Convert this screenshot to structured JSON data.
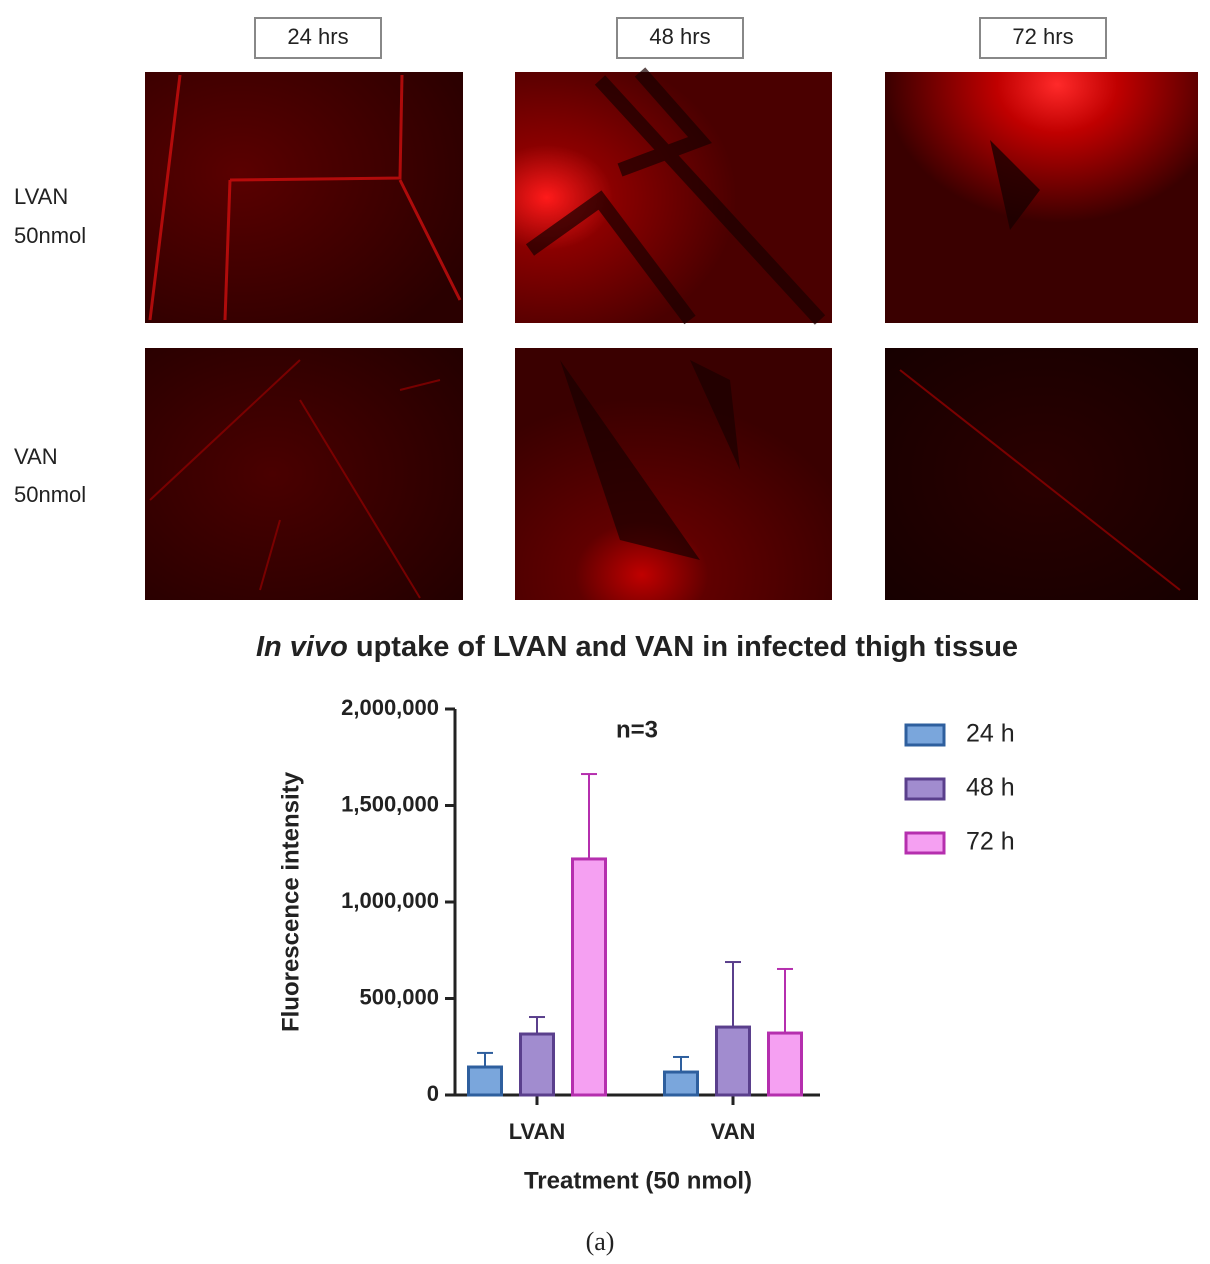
{
  "panels": {
    "columns": [
      "24 hrs",
      "48 hrs",
      "72 hrs"
    ],
    "rows": [
      [
        "LVAN",
        "50nmol"
      ],
      [
        "VAN",
        "50nmol"
      ]
    ]
  },
  "chart_data": {
    "type": "bar",
    "title_prefix": "In vivo",
    "title": "uptake of LVAN and VAN in infected thigh tissue",
    "annotation": "n=3",
    "x_label": "Treatment (50 nmol)",
    "y_label": "Fluorescence intensity",
    "categories": [
      "LVAN",
      "VAN"
    ],
    "series": [
      {
        "name": "24 h",
        "color": "#7aa6dc",
        "edge": "#2e5f9e",
        "values": [
          145000,
          119000
        ],
        "errors": [
          73000,
          78000
        ]
      },
      {
        "name": "48 h",
        "color": "#a18ccf",
        "edge": "#5a3f8c",
        "values": [
          316000,
          352000
        ],
        "errors": [
          88000,
          337000
        ]
      },
      {
        "name": "72 h",
        "color": "#f5a0f2",
        "edge": "#b52fae",
        "values": [
          1223000,
          321000
        ],
        "errors": [
          440000,
          332000
        ]
      }
    ],
    "ylim": [
      0,
      2000000
    ],
    "yticks": [
      0,
      {
        "value": 500000,
        "label": "500,000"
      },
      {
        "value": 1000000,
        "label": "1,000,000"
      },
      {
        "value": 1500000,
        "label": "1,500,000"
      },
      {
        "value": 2000000,
        "label": "2,000,000"
      }
    ],
    "legend": "right"
  },
  "caption": "(a)"
}
